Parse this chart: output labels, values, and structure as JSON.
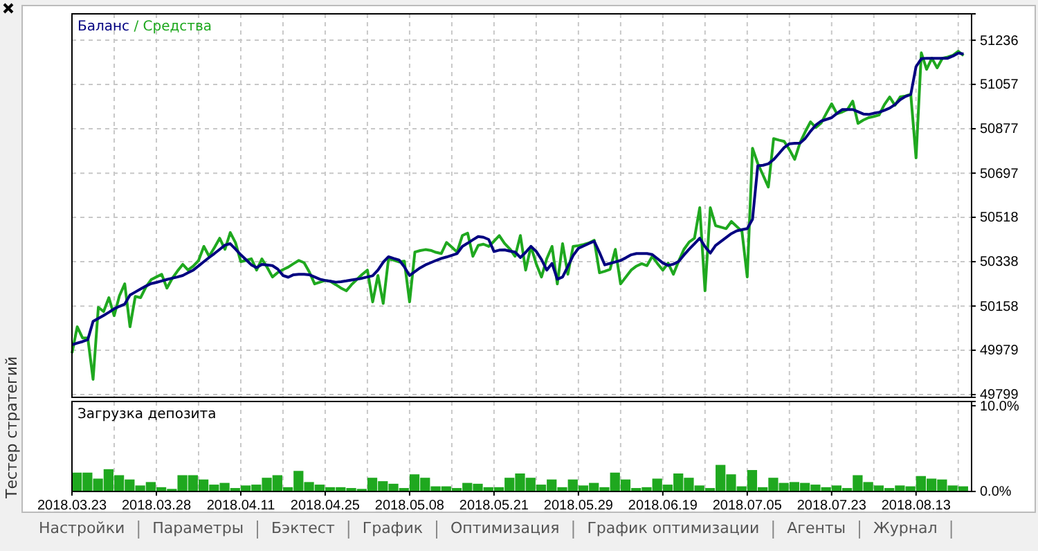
{
  "chart_data": [
    {
      "type": "line",
      "legend": "top left",
      "grid": true,
      "tick_labels": "y",
      "annotations": [
        "/"
      ],
      "ylim": [
        49788,
        51343
      ],
      "categories": [
        "2018.03.23",
        null,
        null,
        null,
        null,
        null,
        null,
        null,
        null,
        null,
        null,
        null,
        null,
        null,
        null,
        null,
        "2018.03.28",
        null,
        null,
        null,
        null,
        null,
        null,
        null,
        null,
        null,
        null,
        null,
        null,
        null,
        null,
        null,
        "2018.04.11",
        null,
        null,
        null,
        null,
        null,
        null,
        null,
        null,
        null,
        null,
        null,
        null,
        null,
        null,
        null,
        "2018.04.25",
        null,
        null,
        null,
        null,
        null,
        null,
        null,
        null,
        null,
        null,
        null,
        null,
        null,
        null,
        null,
        "2018.05.08",
        null,
        null,
        null,
        null,
        null,
        null,
        null,
        null,
        null,
        null,
        null,
        null,
        null,
        null,
        null,
        "2018.05.21",
        null,
        null,
        null,
        null,
        null,
        null,
        null,
        null,
        null,
        null,
        null,
        null,
        null,
        null,
        null,
        "2018.05.29",
        null,
        null,
        null,
        null,
        null,
        null,
        null,
        null,
        null,
        null,
        null,
        null,
        null,
        null,
        null,
        "2018.06.19",
        null,
        null,
        null,
        null,
        null,
        null,
        null,
        null,
        null,
        null,
        null,
        null,
        null,
        null,
        null,
        "2018.07.05",
        null,
        null,
        null,
        null,
        null,
        null,
        null,
        null,
        null,
        null,
        null,
        null,
        null,
        null,
        null,
        "2018.07.23",
        null,
        null,
        null,
        null,
        null,
        null,
        null,
        null,
        null,
        null,
        null,
        null,
        null,
        null,
        null,
        "2018.08.13",
        null,
        null,
        null,
        null,
        null,
        null,
        null,
        null,
        null,
        null
      ],
      "yticks": [
        49799,
        49979,
        50158,
        50338,
        50518,
        50697,
        50877,
        51057,
        51236
      ],
      "series": [
        {
          "name": "Баланс",
          "color": "#000080",
          "values": [
            50001,
            50008,
            50014,
            50022,
            50096,
            50108,
            50120,
            50133,
            50147,
            50157,
            50166,
            50203,
            50215,
            50227,
            50239,
            50249,
            50254,
            50260,
            50266,
            50271,
            50276,
            50282,
            50293,
            50304,
            50321,
            50338,
            50355,
            50371,
            50388,
            50405,
            50411,
            50389,
            50366,
            50346,
            50325,
            50314,
            50327,
            50325,
            50322,
            50308,
            50282,
            50275,
            50285,
            50287,
            50287,
            50285,
            50276,
            50267,
            50262,
            50259,
            50255,
            50257,
            50260,
            50264,
            50267,
            50271,
            50276,
            50281,
            50304,
            50336,
            50358,
            50351,
            50345,
            50317,
            50282,
            50298,
            50313,
            50325,
            50334,
            50343,
            50351,
            50357,
            50364,
            50371,
            50400,
            50413,
            50427,
            50440,
            50437,
            50428,
            50379,
            50385,
            50386,
            50381,
            50377,
            50355,
            50376,
            50400,
            50380,
            50347,
            50304,
            50331,
            50267,
            50276,
            50319,
            50363,
            50392,
            50402,
            50412,
            50421,
            50375,
            50325,
            50331,
            50337,
            50343,
            50354,
            50366,
            50371,
            50371,
            50371,
            50367,
            50350,
            50333,
            50323,
            50328,
            50339,
            50365,
            50389,
            50411,
            50433,
            50399,
            50373,
            50404,
            50420,
            50436,
            50452,
            50463,
            50468,
            50472,
            50510,
            50727,
            50729,
            50735,
            50752,
            50776,
            50801,
            50816,
            50818,
            50819,
            50838,
            50867,
            50892,
            50908,
            50915,
            50922,
            50939,
            50955,
            50955,
            50955,
            50946,
            50937,
            50935,
            50940,
            50944,
            50952,
            50961,
            50975,
            50995,
            51008,
            51016,
            51129,
            51161,
            51163,
            51163,
            51163,
            51163,
            51163,
            51172,
            51184,
            51180,
            null
          ]
        },
        {
          "name": "Средства",
          "color": "#1fa81f",
          "values": [
            49967,
            50074,
            50029,
            50029,
            49861,
            50153,
            50136,
            50192,
            50119,
            50200,
            50248,
            50074,
            50197,
            50192,
            50235,
            50265,
            50276,
            50287,
            50231,
            50270,
            50300,
            50327,
            50304,
            50320,
            50343,
            50400,
            50360,
            50395,
            50433,
            50388,
            50456,
            50415,
            50338,
            50343,
            50350,
            50304,
            50349,
            50315,
            50276,
            50294,
            50306,
            50316,
            50330,
            50343,
            50334,
            50296,
            50248,
            50255,
            50262,
            50258,
            50245,
            50231,
            50220,
            50245,
            50266,
            50286,
            50304,
            50175,
            50282,
            50169,
            50349,
            50344,
            50337,
            50340,
            50175,
            50377,
            50383,
            50387,
            50384,
            50376,
            50371,
            50416,
            50397,
            50377,
            50444,
            50454,
            50360,
            50404,
            50409,
            50400,
            50421,
            50444,
            50412,
            50390,
            50360,
            50444,
            50304,
            50400,
            50330,
            50276,
            50350,
            50400,
            50248,
            50411,
            50287,
            50400,
            50403,
            50408,
            50414,
            50425,
            50293,
            50299,
            50307,
            50388,
            50248,
            50276,
            50304,
            50320,
            50330,
            50322,
            50360,
            50330,
            50304,
            50332,
            50287,
            50340,
            50388,
            50418,
            50433,
            50557,
            50220,
            50557,
            50484,
            50478,
            50472,
            50501,
            50481,
            50461,
            50276,
            50798,
            50736,
            50689,
            50641,
            50837,
            50831,
            50826,
            50792,
            50753,
            50820,
            50865,
            50905,
            50882,
            50900,
            50940,
            50978,
            50938,
            50945,
            50955,
            50989,
            50899,
            50912,
            50922,
            50927,
            50933,
            50975,
            51006,
            50972,
            51006,
            51010,
            51017,
            50759,
            51185,
            51118,
            51163,
            51124,
            51163,
            51168,
            51175,
            51191,
            51174,
            null
          ]
        }
      ]
    },
    {
      "type": "bar",
      "title": "Загрузка депозита",
      "grid": "x",
      "color": "#1fa81f",
      "ylim": [
        0,
        10.5
      ],
      "categories": [
        "2018.03.23",
        null,
        null,
        null,
        null,
        null,
        null,
        null,
        "2018.03.28",
        null,
        null,
        null,
        null,
        null,
        null,
        null,
        "2018.04.11",
        null,
        null,
        null,
        null,
        null,
        null,
        null,
        "2018.04.25",
        null,
        null,
        null,
        null,
        null,
        null,
        null,
        "2018.05.08",
        null,
        null,
        null,
        null,
        null,
        null,
        null,
        "2018.05.21",
        null,
        null,
        null,
        null,
        null,
        null,
        null,
        "2018.05.29",
        null,
        null,
        null,
        null,
        null,
        null,
        null,
        "2018.06.19",
        null,
        null,
        null,
        null,
        null,
        null,
        null,
        "2018.07.05",
        null,
        null,
        null,
        null,
        null,
        null,
        null,
        "2018.07.23",
        null,
        null,
        null,
        null,
        null,
        null,
        null,
        "2018.08.13",
        null,
        null,
        null,
        null,
        null
      ],
      "yticks": [
        {
          "value": 0,
          "label": "0.0%"
        },
        {
          "value": 10,
          "label": "10.0%"
        }
      ],
      "values": [
        2.2,
        2.2,
        1.5,
        2.6,
        1.9,
        1.4,
        0.7,
        1.1,
        0.5,
        0.3,
        1.9,
        1.9,
        1.4,
        0.8,
        1.0,
        0.4,
        0.7,
        0.8,
        1.6,
        1.9,
        0.5,
        2.4,
        1.1,
        0.8,
        0.5,
        0.5,
        0.4,
        0.3,
        1.6,
        1.2,
        0.9,
        0.4,
        2.0,
        1.6,
        0.6,
        0.6,
        0.4,
        1.0,
        0.9,
        0.5,
        0.5,
        1.6,
        2.1,
        1.6,
        0.8,
        1.4,
        0.5,
        1.4,
        0.7,
        1.0,
        0.5,
        2.2,
        1.4,
        0.4,
        0.5,
        1.5,
        0.8,
        2.1,
        1.6,
        0.7,
        0.4,
        3.1,
        2.0,
        0.6,
        2.5,
        0.5,
        1.6,
        1.0,
        1.1,
        1.0,
        0.8,
        0.5,
        0.7,
        0.4,
        1.9,
        1.1,
        0.7,
        0.4,
        0.7,
        0.6,
        1.8,
        1.5,
        1.4,
        0.7,
        0.6,
        null
      ]
    },
    {
      "type": "other",
      "annotations": [
        "Тестер стратегий",
        "Настройки",
        "Параметры",
        "Бэктест",
        "График",
        "Оптимизация",
        "График оптимизации",
        "Агенты",
        "Журнал"
      ]
    }
  ]
}
